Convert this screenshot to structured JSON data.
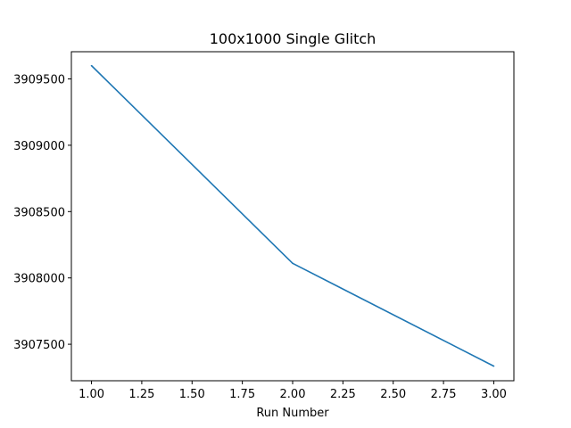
{
  "chart_data": {
    "type": "line",
    "title": "100x1000 Single Glitch",
    "xlabel": "Run Number",
    "ylabel": "",
    "x": [
      1.0,
      2.0,
      3.0
    ],
    "series": [
      {
        "values": [
          3909600,
          3908110,
          3907335
        ],
        "color": "#1f77b4"
      }
    ],
    "xlim": [
      0.9,
      3.1
    ],
    "ylim": [
      3907225,
      3909705
    ],
    "xticks": [
      1.0,
      1.25,
      1.5,
      1.75,
      2.0,
      2.25,
      2.5,
      2.75,
      3.0
    ],
    "xtick_labels": [
      "1.00",
      "1.25",
      "1.50",
      "1.75",
      "2.00",
      "2.25",
      "2.50",
      "2.75",
      "3.00"
    ],
    "yticks": [
      3907500,
      3908000,
      3908500,
      3909000,
      3909500
    ],
    "ytick_labels": [
      "3907500",
      "3908000",
      "3908500",
      "3909000",
      "3909500"
    ],
    "grid": false,
    "legend": "none"
  }
}
